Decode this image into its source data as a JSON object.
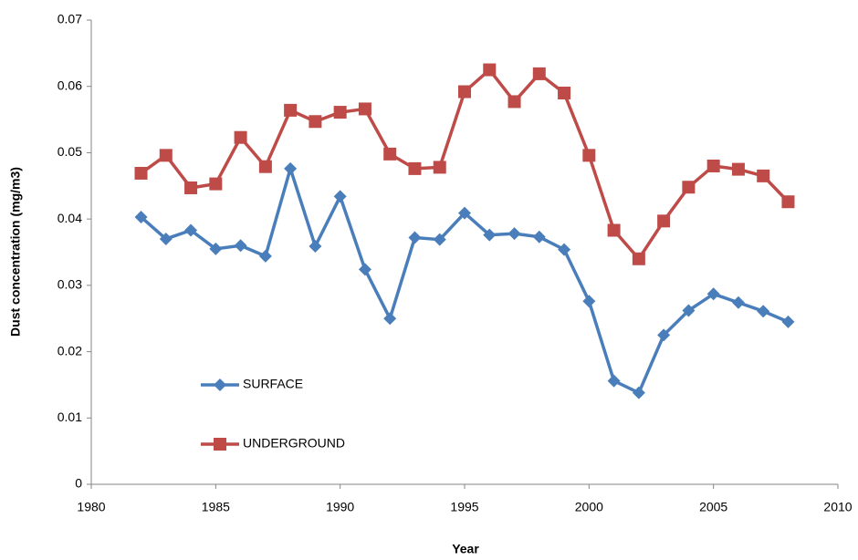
{
  "chart_data": {
    "type": "line",
    "x_label": "Year",
    "y_label": "Dust concentration (mg/m3)",
    "x": [
      1982,
      1983,
      1984,
      1985,
      1986,
      1987,
      1988,
      1989,
      1990,
      1991,
      1992,
      1993,
      1994,
      1995,
      1996,
      1997,
      1998,
      1999,
      2000,
      2001,
      2002,
      2003,
      2004,
      2005,
      2006,
      2007,
      2008
    ],
    "series": [
      {
        "name": "SURFACE",
        "color": "#4a7ebb",
        "marker": "diamond",
        "values": [
          0.0403,
          0.037,
          0.0383,
          0.0355,
          0.036,
          0.0344,
          0.0476,
          0.0359,
          0.0434,
          0.0324,
          0.025,
          0.0372,
          0.0369,
          0.0409,
          0.0376,
          0.0378,
          0.0373,
          0.0354,
          0.0276,
          0.0156,
          0.0138,
          0.0225,
          0.0262,
          0.0287,
          0.0274,
          0.0261,
          0.0245
        ]
      },
      {
        "name": "UNDERGROUND",
        "color": "#be4b48",
        "marker": "square",
        "values": [
          0.0469,
          0.0496,
          0.0447,
          0.0453,
          0.0523,
          0.0479,
          0.0564,
          0.0547,
          0.0561,
          0.0566,
          0.0498,
          0.0476,
          0.0478,
          0.0592,
          0.0625,
          0.0577,
          0.0619,
          0.059,
          0.0496,
          0.0383,
          0.034,
          0.0397,
          0.0448,
          0.048,
          0.0475,
          0.0465,
          0.0426
        ]
      }
    ],
    "xlim": [
      1980,
      2010
    ],
    "xticks": [
      1980,
      1985,
      1990,
      1995,
      2000,
      2005,
      2010
    ],
    "ylim": [
      0,
      0.07
    ],
    "yticks": [
      0,
      0.01,
      0.02,
      0.03,
      0.04,
      0.05,
      0.06,
      0.07
    ],
    "grid": false
  }
}
